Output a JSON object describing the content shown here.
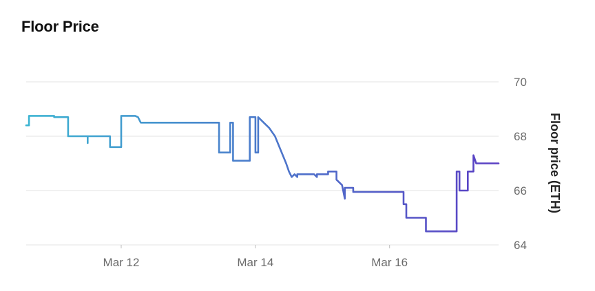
{
  "page": {
    "title": "Floor Price"
  },
  "colors": {
    "grid": "#e3e3e3",
    "line_start": "#3cb4d2",
    "line_end": "#5b3fc4"
  },
  "chart_data": {
    "type": "line",
    "title": "Floor Price",
    "xlabel": "",
    "ylabel": "Floor price (ETH)",
    "ylim": [
      64,
      70
    ],
    "xlim": [
      "2023-03-10T14:00",
      "2023-03-17T15:00"
    ],
    "y_ticks": [
      64,
      66,
      68,
      70
    ],
    "x_ticks": [
      {
        "t": "2023-03-12T00:00",
        "label": "Mar 12"
      },
      {
        "t": "2023-03-14T00:00",
        "label": "Mar 14"
      },
      {
        "t": "2023-03-16T00:00",
        "label": "Mar 16"
      }
    ],
    "y_axis_side": "right",
    "grid": "horizontal",
    "series": [
      {
        "points": [
          [
            "2023-03-10T14:00",
            68.4
          ],
          [
            "2023-03-10T15:00",
            68.4
          ],
          [
            "2023-03-10T15:00",
            68.75
          ],
          [
            "2023-03-11T00:00",
            68.75
          ],
          [
            "2023-03-11T00:00",
            68.7
          ],
          [
            "2023-03-11T05:00",
            68.7
          ],
          [
            "2023-03-11T05:00",
            68.0
          ],
          [
            "2023-03-11T12:00",
            68.0
          ],
          [
            "2023-03-11T12:00",
            67.75
          ],
          [
            "2023-03-11T12:00",
            68.0
          ],
          [
            "2023-03-11T20:00",
            68.0
          ],
          [
            "2023-03-11T20:00",
            67.6
          ],
          [
            "2023-03-12T00:00",
            67.6
          ],
          [
            "2023-03-12T00:00",
            68.75
          ],
          [
            "2023-03-12T05:00",
            68.75
          ],
          [
            "2023-03-12T06:00",
            68.7
          ],
          [
            "2023-03-12T07:00",
            68.5
          ],
          [
            "2023-03-13T11:00",
            68.5
          ],
          [
            "2023-03-13T11:00",
            67.4
          ],
          [
            "2023-03-13T15:00",
            67.4
          ],
          [
            "2023-03-13T15:00",
            68.5
          ],
          [
            "2023-03-13T16:00",
            68.5
          ],
          [
            "2023-03-13T16:00",
            67.1
          ],
          [
            "2023-03-13T22:00",
            67.1
          ],
          [
            "2023-03-13T22:00",
            68.7
          ],
          [
            "2023-03-14T00:00",
            68.7
          ],
          [
            "2023-03-14T00:00",
            67.4
          ],
          [
            "2023-03-14T01:00",
            67.4
          ],
          [
            "2023-03-14T01:00",
            68.7
          ],
          [
            "2023-03-14T03:00",
            68.5
          ],
          [
            "2023-03-14T05:00",
            68.3
          ],
          [
            "2023-03-14T07:00",
            68.0
          ],
          [
            "2023-03-14T09:00",
            67.5
          ],
          [
            "2023-03-14T11:00",
            67.0
          ],
          [
            "2023-03-14T12:00",
            66.7
          ],
          [
            "2023-03-14T13:00",
            66.5
          ],
          [
            "2023-03-14T14:00",
            66.6
          ],
          [
            "2023-03-14T15:00",
            66.5
          ],
          [
            "2023-03-14T15:00",
            66.6
          ],
          [
            "2023-03-14T21:00",
            66.6
          ],
          [
            "2023-03-14T22:00",
            66.5
          ],
          [
            "2023-03-14T22:00",
            66.6
          ],
          [
            "2023-03-15T02:00",
            66.6
          ],
          [
            "2023-03-15T02:00",
            66.7
          ],
          [
            "2023-03-15T05:00",
            66.7
          ],
          [
            "2023-03-15T05:00",
            66.4
          ],
          [
            "2023-03-15T07:00",
            66.2
          ],
          [
            "2023-03-15T08:00",
            65.7
          ],
          [
            "2023-03-15T08:00",
            66.1
          ],
          [
            "2023-03-15T11:00",
            66.1
          ],
          [
            "2023-03-15T11:00",
            65.95
          ],
          [
            "2023-03-16T05:00",
            65.95
          ],
          [
            "2023-03-16T05:00",
            65.5
          ],
          [
            "2023-03-16T06:00",
            65.5
          ],
          [
            "2023-03-16T06:00",
            65.0
          ],
          [
            "2023-03-16T13:00",
            65.0
          ],
          [
            "2023-03-16T13:00",
            64.5
          ],
          [
            "2023-03-17T00:00",
            64.5
          ],
          [
            "2023-03-17T00:00",
            66.7
          ],
          [
            "2023-03-17T01:00",
            66.7
          ],
          [
            "2023-03-17T01:00",
            66.0
          ],
          [
            "2023-03-17T04:00",
            66.0
          ],
          [
            "2023-03-17T04:00",
            66.7
          ],
          [
            "2023-03-17T06:00",
            66.7
          ],
          [
            "2023-03-17T06:00",
            67.3
          ],
          [
            "2023-03-17T07:00",
            67.0
          ],
          [
            "2023-03-17T15:00",
            67.0
          ]
        ]
      }
    ]
  }
}
